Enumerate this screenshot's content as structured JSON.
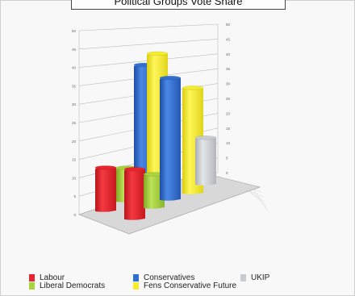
{
  "title": "Political Groups Vote Share",
  "chart_data": {
    "type": "bar",
    "title": "Political Groups Vote Share",
    "ylim": [
      0,
      50
    ],
    "y_ticks": [
      0,
      5,
      10,
      15,
      20,
      25,
      30,
      35,
      40,
      45,
      50
    ],
    "grid": true,
    "legend_position": "bottom",
    "series": [
      {
        "name": "Labour",
        "color": "#e8252e",
        "values": [
          13,
          15
        ]
      },
      {
        "name": "Liberal Democrats",
        "color": "#a8d33a",
        "values": [
          10,
          10
        ]
      },
      {
        "name": "Conservatives",
        "color": "#2f6fd0",
        "values": [
          40,
          37
        ]
      },
      {
        "name": "Fens Conservative Future",
        "color": "#f5ec2b",
        "values": [
          42,
          32
        ]
      },
      {
        "name": "UKIP",
        "color": "#c8cccf",
        "values": [
          0,
          14
        ]
      }
    ]
  },
  "legend": [
    {
      "label": "Labour",
      "color": "#e8252e"
    },
    {
      "label": "Liberal Democrats",
      "color": "#a8d33a"
    },
    {
      "label": "Conservatives",
      "color": "#2f6fd0"
    },
    {
      "label": "Fens Conservative Future",
      "color": "#f5ec2b"
    },
    {
      "label": "UKIP",
      "color": "#c8cccf"
    }
  ]
}
